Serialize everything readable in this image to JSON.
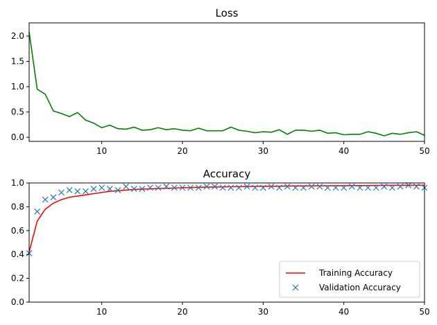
{
  "chart_data": [
    {
      "type": "line",
      "title": "Loss",
      "xlabel": "",
      "ylabel": "",
      "xlim": [
        1,
        50
      ],
      "ylim": [
        -0.08,
        2.26
      ],
      "xticks": [
        "10",
        "20",
        "30",
        "40",
        "50"
      ],
      "yticks": [
        "0.0",
        "0.5",
        "1.0",
        "1.5",
        "2.0"
      ],
      "grid": false,
      "x": [
        1,
        2,
        3,
        4,
        5,
        6,
        7,
        8,
        9,
        10,
        11,
        12,
        13,
        14,
        15,
        16,
        17,
        18,
        19,
        20,
        21,
        22,
        23,
        24,
        25,
        26,
        27,
        28,
        29,
        30,
        31,
        32,
        33,
        34,
        35,
        36,
        37,
        38,
        39,
        40,
        41,
        42,
        43,
        44,
        45,
        46,
        47,
        48,
        49,
        50
      ],
      "series": [
        {
          "color": "#008000",
          "style": "line",
          "values": [
            2.08,
            0.95,
            0.85,
            0.52,
            0.47,
            0.41,
            0.49,
            0.34,
            0.28,
            0.19,
            0.24,
            0.17,
            0.16,
            0.2,
            0.14,
            0.15,
            0.19,
            0.15,
            0.17,
            0.14,
            0.13,
            0.18,
            0.13,
            0.13,
            0.13,
            0.2,
            0.14,
            0.12,
            0.09,
            0.11,
            0.1,
            0.15,
            0.06,
            0.14,
            0.14,
            0.12,
            0.14,
            0.08,
            0.09,
            0.05,
            0.06,
            0.06,
            0.11,
            0.08,
            0.03,
            0.08,
            0.06,
            0.09,
            0.11,
            0.04
          ]
        }
      ]
    },
    {
      "type": "line",
      "title": "Accuracy",
      "xlabel": "",
      "ylabel": "",
      "xlim": [
        1,
        50
      ],
      "ylim": [
        0,
        1
      ],
      "xticks": [
        "10",
        "20",
        "30",
        "40",
        "50"
      ],
      "yticks": [
        "0.0",
        "0.2",
        "0.4",
        "0.6",
        "0.8",
        "1.0"
      ],
      "grid": false,
      "legend": "bottom-right",
      "x": [
        1,
        2,
        3,
        4,
        5,
        6,
        7,
        8,
        9,
        10,
        11,
        12,
        13,
        14,
        15,
        16,
        17,
        18,
        19,
        20,
        21,
        22,
        23,
        24,
        25,
        26,
        27,
        28,
        29,
        30,
        31,
        32,
        33,
        34,
        35,
        36,
        37,
        38,
        39,
        40,
        41,
        42,
        43,
        44,
        45,
        46,
        47,
        48,
        49,
        50
      ],
      "series": [
        {
          "name": "Training Accuracy",
          "color": "#ff0000",
          "style": "line",
          "values": [
            0.42,
            0.68,
            0.78,
            0.83,
            0.86,
            0.88,
            0.89,
            0.9,
            0.91,
            0.92,
            0.93,
            0.935,
            0.94,
            0.945,
            0.948,
            0.95,
            0.953,
            0.955,
            0.957,
            0.96,
            0.961,
            0.963,
            0.965,
            0.966,
            0.967,
            0.968,
            0.969,
            0.97,
            0.971,
            0.972,
            0.972,
            0.973,
            0.974,
            0.974,
            0.975,
            0.975,
            0.976,
            0.976,
            0.977,
            0.977,
            0.978,
            0.978,
            0.978,
            0.979,
            0.979,
            0.98,
            0.98,
            0.98,
            0.981,
            0.981
          ]
        },
        {
          "name": "Validation Accuracy",
          "color": "#1f77b4",
          "style": "marker-x",
          "values": [
            0.41,
            0.76,
            0.86,
            0.88,
            0.92,
            0.94,
            0.93,
            0.93,
            0.95,
            0.96,
            0.95,
            0.94,
            0.97,
            0.95,
            0.95,
            0.96,
            0.96,
            0.97,
            0.96,
            0.96,
            0.96,
            0.96,
            0.97,
            0.97,
            0.96,
            0.96,
            0.96,
            0.97,
            0.96,
            0.96,
            0.97,
            0.96,
            0.97,
            0.96,
            0.96,
            0.97,
            0.97,
            0.96,
            0.96,
            0.96,
            0.97,
            0.96,
            0.96,
            0.96,
            0.97,
            0.96,
            0.97,
            0.98,
            0.97,
            0.96
          ]
        }
      ]
    }
  ]
}
